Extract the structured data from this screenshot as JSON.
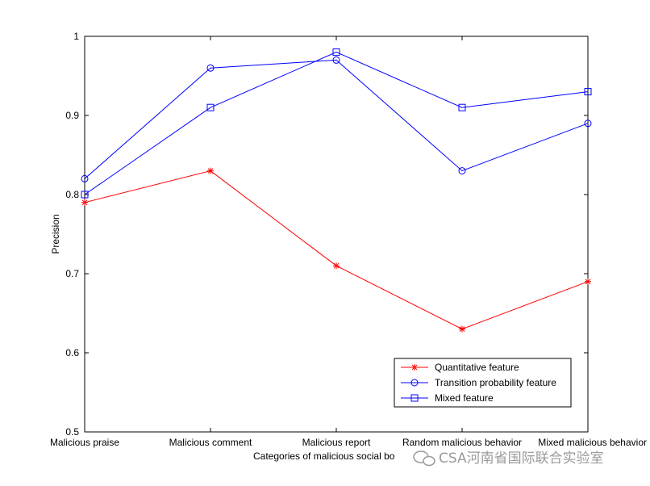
{
  "chart_data": {
    "type": "line",
    "categories": [
      "Malicious praise",
      "Malicious comment",
      "Malicious report",
      "Random malicious behavior",
      "Mixed malicious behavior"
    ],
    "series": [
      {
        "name": "Quantitative feature",
        "values": [
          0.79,
          0.83,
          0.71,
          0.63,
          0.69
        ],
        "color": "#ff0000",
        "marker": "asterisk"
      },
      {
        "name": "Transition probability feature",
        "values": [
          0.82,
          0.96,
          0.97,
          0.83,
          0.89
        ],
        "color": "#0000ff",
        "marker": "circle"
      },
      {
        "name": "Mixed feature",
        "values": [
          0.8,
          0.91,
          0.98,
          0.91,
          0.93
        ],
        "color": "#0000ff",
        "marker": "square"
      }
    ],
    "xlabel": "Categories of malicious social bo",
    "ylabel": "Precision",
    "ylim": [
      0.5,
      1
    ],
    "yticks": [
      "0.5",
      "0.6",
      "0.7",
      "0.8",
      "0.9",
      "1"
    ],
    "grid": false,
    "legend_position": "bottom-right"
  },
  "watermark": {
    "text": "CSA河南省国际联合实验室",
    "icon": "wechat-icon"
  }
}
